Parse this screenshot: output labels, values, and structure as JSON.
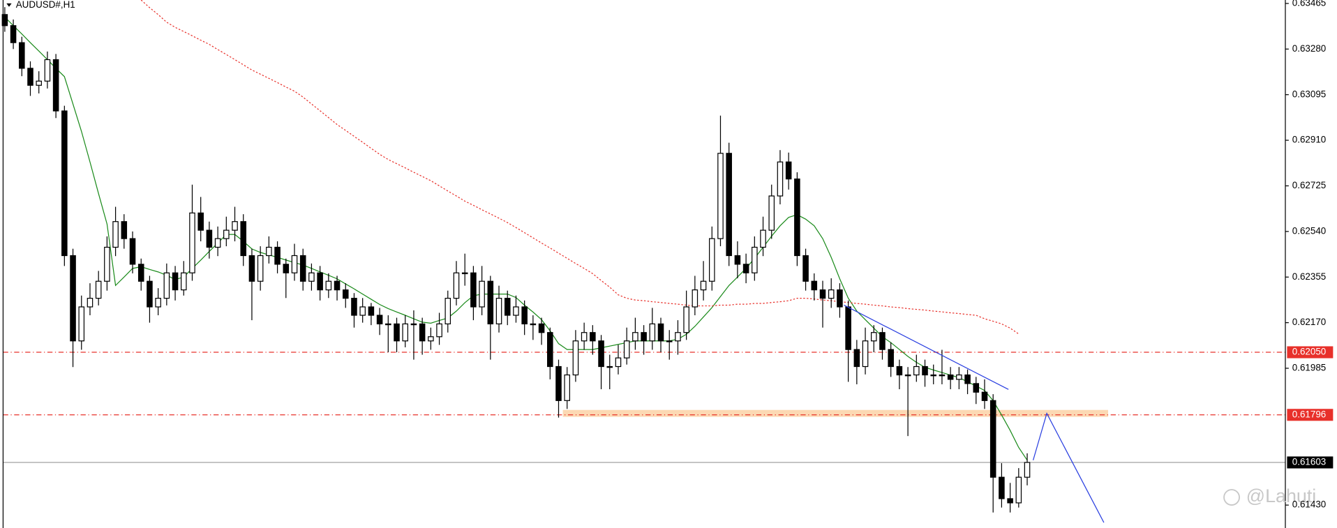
{
  "chart_data": {
    "type": "candlestick",
    "title": "AUDUSD#,H1",
    "watermark": "@Lahuti",
    "ylim": [
      0.61337,
      0.63479
    ],
    "xlim": [
      -0.5,
      150.3
    ],
    "yticks": [
      0.63465,
      {
        "value": 0.6328,
        "label": "0.63280"
      },
      0.63095,
      {
        "value": 0.6291,
        "label": "0.62910"
      },
      0.62725,
      {
        "value": 0.6254,
        "label": "0.62540"
      },
      0.62355,
      {
        "value": 0.6217,
        "label": "0.62170"
      },
      0.61985,
      {
        "value": 0.6143,
        "label": "0.61430"
      }
    ],
    "bull_color": "#ffffff",
    "bear_color": "#000000",
    "candles": [
      [
        0.6342,
        0.6345,
        0.6335,
        0.63375
      ],
      [
        0.63375,
        0.634,
        0.6328,
        0.63306
      ],
      [
        0.63306,
        0.6333,
        0.6317,
        0.63202
      ],
      [
        0.63202,
        0.6323,
        0.6309,
        0.63133
      ],
      [
        0.63133,
        0.6319,
        0.631,
        0.6315
      ],
      [
        0.6315,
        0.6327,
        0.6312,
        0.63237
      ],
      [
        0.63237,
        0.6326,
        0.63,
        0.63029
      ],
      [
        0.63029,
        0.6305,
        0.624,
        0.62442
      ],
      [
        0.62442,
        0.6247,
        0.6199,
        0.62096
      ],
      [
        0.62096,
        0.6228,
        0.6206,
        0.62234
      ],
      [
        0.62234,
        0.6233,
        0.622,
        0.62269
      ],
      [
        0.62269,
        0.6238,
        0.6224,
        0.62338
      ],
      [
        0.62338,
        0.6252,
        0.623,
        0.62476
      ],
      [
        0.62476,
        0.6264,
        0.6244,
        0.6258
      ],
      [
        0.6258,
        0.6261,
        0.6247,
        0.62511
      ],
      [
        0.62511,
        0.6254,
        0.6237,
        0.62407
      ],
      [
        0.62407,
        0.6243,
        0.623,
        0.62338
      ],
      [
        0.62338,
        0.6236,
        0.6217,
        0.62234
      ],
      [
        0.62234,
        0.6231,
        0.622,
        0.62269
      ],
      [
        0.62269,
        0.6241,
        0.6224,
        0.62372
      ],
      [
        0.62372,
        0.624,
        0.6226,
        0.62303
      ],
      [
        0.62303,
        0.6242,
        0.6228,
        0.62372
      ],
      [
        0.62372,
        0.6273,
        0.6234,
        0.62615
      ],
      [
        0.62615,
        0.6268,
        0.625,
        0.62545
      ],
      [
        0.62545,
        0.6258,
        0.6243,
        0.62476
      ],
      [
        0.62476,
        0.6256,
        0.6244,
        0.62511
      ],
      [
        0.62511,
        0.626,
        0.6248,
        0.62545
      ],
      [
        0.62545,
        0.6264,
        0.625,
        0.6258
      ],
      [
        0.6258,
        0.6261,
        0.624,
        0.62442
      ],
      [
        0.62442,
        0.6247,
        0.6218,
        0.62338
      ],
      [
        0.62338,
        0.6248,
        0.623,
        0.62442
      ],
      [
        0.62442,
        0.6252,
        0.6241,
        0.62476
      ],
      [
        0.62476,
        0.625,
        0.6237,
        0.62407
      ],
      [
        0.62407,
        0.6243,
        0.6227,
        0.62372
      ],
      [
        0.62372,
        0.6249,
        0.6234,
        0.62442
      ],
      [
        0.62442,
        0.6247,
        0.623,
        0.62338
      ],
      [
        0.62338,
        0.6241,
        0.623,
        0.62372
      ],
      [
        0.62372,
        0.624,
        0.6226,
        0.62303
      ],
      [
        0.62303,
        0.6237,
        0.6227,
        0.62338
      ],
      [
        0.62338,
        0.6236,
        0.6226,
        0.62303
      ],
      [
        0.62303,
        0.6233,
        0.6223,
        0.62269
      ],
      [
        0.62269,
        0.6229,
        0.6215,
        0.622
      ],
      [
        0.622,
        0.6227,
        0.6217,
        0.62234
      ],
      [
        0.62234,
        0.6225,
        0.6216,
        0.622
      ],
      [
        0.622,
        0.6223,
        0.6212,
        0.62165
      ],
      [
        0.62165,
        0.622,
        0.6205,
        0.62165
      ],
      [
        0.62165,
        0.6219,
        0.6205,
        0.62096
      ],
      [
        0.62096,
        0.622,
        0.6207,
        0.62165
      ],
      [
        0.62165,
        0.6222,
        0.6202,
        0.62165
      ],
      [
        0.62165,
        0.6219,
        0.6204,
        0.62096
      ],
      [
        0.62096,
        0.6215,
        0.6206,
        0.62113
      ],
      [
        0.62113,
        0.6221,
        0.6208,
        0.62165
      ],
      [
        0.62165,
        0.623,
        0.6213,
        0.62269
      ],
      [
        0.62269,
        0.6242,
        0.6224,
        0.62372
      ],
      [
        0.62372,
        0.6245,
        0.6232,
        0.62372
      ],
      [
        0.62372,
        0.624,
        0.6218,
        0.62234
      ],
      [
        0.62234,
        0.624,
        0.622,
        0.62338
      ],
      [
        0.62338,
        0.6236,
        0.6202,
        0.62165
      ],
      [
        0.62165,
        0.6232,
        0.6213,
        0.62269
      ],
      [
        0.62269,
        0.623,
        0.6216,
        0.622
      ],
      [
        0.622,
        0.6228,
        0.6217,
        0.62234
      ],
      [
        0.62234,
        0.6226,
        0.6212,
        0.62165
      ],
      [
        0.62165,
        0.622,
        0.621,
        0.62165
      ],
      [
        0.62165,
        0.6219,
        0.6208,
        0.6213
      ],
      [
        0.6213,
        0.6215,
        0.6194,
        0.61992
      ],
      [
        0.61992,
        0.6202,
        0.61785,
        0.61854
      ],
      [
        0.61854,
        0.6199,
        0.6182,
        0.61958
      ],
      [
        0.61958,
        0.6214,
        0.6193,
        0.62096
      ],
      [
        0.62096,
        0.6217,
        0.6206,
        0.6213
      ],
      [
        0.6213,
        0.6216,
        0.6204,
        0.62096
      ],
      [
        0.62096,
        0.6212,
        0.619,
        0.61992
      ],
      [
        0.61992,
        0.6204,
        0.619,
        0.61992
      ],
      [
        0.61992,
        0.6208,
        0.6196,
        0.62027
      ],
      [
        0.62027,
        0.6215,
        0.62,
        0.62096
      ],
      [
        0.62096,
        0.6219,
        0.6206,
        0.6213
      ],
      [
        0.6213,
        0.6216,
        0.6204,
        0.62096
      ],
      [
        0.62096,
        0.6223,
        0.6206,
        0.62165
      ],
      [
        0.62165,
        0.6219,
        0.6205,
        0.62096
      ],
      [
        0.62096,
        0.6214,
        0.6202,
        0.62096
      ],
      [
        0.62096,
        0.6218,
        0.6204,
        0.6213
      ],
      [
        0.6213,
        0.623,
        0.621,
        0.62234
      ],
      [
        0.62234,
        0.6236,
        0.622,
        0.62303
      ],
      [
        0.62303,
        0.6242,
        0.6226,
        0.62338
      ],
      [
        0.62338,
        0.6256,
        0.623,
        0.62511
      ],
      [
        0.62511,
        0.6301,
        0.6248,
        0.62857
      ],
      [
        0.62857,
        0.629,
        0.624,
        0.62442
      ],
      [
        0.62442,
        0.625,
        0.6235,
        0.62407
      ],
      [
        0.62407,
        0.6245,
        0.6233,
        0.62372
      ],
      [
        0.62372,
        0.6252,
        0.6234,
        0.62476
      ],
      [
        0.62476,
        0.626,
        0.6244,
        0.62545
      ],
      [
        0.62545,
        0.6273,
        0.6251,
        0.62684
      ],
      [
        0.62684,
        0.6287,
        0.6265,
        0.62822
      ],
      [
        0.62822,
        0.6286,
        0.6271,
        0.62753
      ],
      [
        0.62753,
        0.6278,
        0.624,
        0.62442
      ],
      [
        0.62442,
        0.6247,
        0.623,
        0.62338
      ],
      [
        0.62338,
        0.6237,
        0.6226,
        0.62303
      ],
      [
        0.62303,
        0.6234,
        0.6215,
        0.62269
      ],
      [
        0.62269,
        0.6235,
        0.6223,
        0.62303
      ],
      [
        0.62303,
        0.6233,
        0.6219,
        0.62234
      ],
      [
        0.62234,
        0.6226,
        0.6193,
        0.62061
      ],
      [
        0.62061,
        0.621,
        0.6192,
        0.61992
      ],
      [
        0.61992,
        0.6215,
        0.6196,
        0.62096
      ],
      [
        0.62096,
        0.6216,
        0.6205,
        0.6213
      ],
      [
        0.6213,
        0.6215,
        0.6202,
        0.62061
      ],
      [
        0.62061,
        0.6209,
        0.6195,
        0.61992
      ],
      [
        0.61992,
        0.6202,
        0.619,
        0.61958
      ],
      [
        0.61958,
        0.6199,
        0.6171,
        0.61958
      ],
      [
        0.61958,
        0.6204,
        0.6193,
        0.61992
      ],
      [
        0.61992,
        0.6202,
        0.6191,
        0.61958
      ],
      [
        0.61958,
        0.62,
        0.6192,
        0.61958
      ],
      [
        0.61958,
        0.6206,
        0.6192,
        0.61958
      ],
      [
        0.61958,
        0.6199,
        0.619,
        0.6194
      ],
      [
        0.6194,
        0.6199,
        0.619,
        0.61958
      ],
      [
        0.61958,
        0.6198,
        0.6188,
        0.61923
      ],
      [
        0.61923,
        0.6195,
        0.6184,
        0.61888
      ],
      [
        0.61888,
        0.6194,
        0.6182,
        0.61854
      ],
      [
        0.61854,
        0.6188,
        0.614,
        0.61543
      ],
      [
        0.61543,
        0.616,
        0.6142,
        0.61456
      ],
      [
        0.61456,
        0.6152,
        0.614,
        0.61439
      ],
      [
        0.61439,
        0.6158,
        0.6142,
        0.61543
      ],
      [
        0.61543,
        0.6164,
        0.6151,
        0.61603
      ]
    ],
    "moving_averages": [
      {
        "color": "#1a8a1a",
        "style": "solid",
        "values": [
          0.6341,
          0.63375,
          0.63341,
          0.63306,
          0.63272,
          0.63237,
          0.63202,
          0.63168,
          0.63057,
          0.62946,
          0.62822,
          0.62694,
          0.6257,
          0.62321,
          0.62355,
          0.6239,
          0.62397,
          0.62386,
          0.62376,
          0.62362,
          0.62345,
          0.62355,
          0.6239,
          0.62424,
          0.62459,
          0.62493,
          0.62528,
          0.62528,
          0.625,
          0.62469,
          0.62455,
          0.62445,
          0.62435,
          0.62424,
          0.62414,
          0.62404,
          0.6239,
          0.62376,
          0.62362,
          0.62348,
          0.62327,
          0.62307,
          0.62286,
          0.62265,
          0.62244,
          0.62227,
          0.62213,
          0.622,
          0.62186,
          0.62172,
          0.62168,
          0.62179,
          0.62189,
          0.62217,
          0.62251,
          0.62279,
          0.62286,
          0.62286,
          0.62286,
          0.62286,
          0.62272,
          0.62241,
          0.62213,
          0.62182,
          0.62137,
          0.62085,
          0.62061,
          0.62061,
          0.62061,
          0.62061,
          0.62068,
          0.62075,
          0.62082,
          0.62089,
          0.62096,
          0.62096,
          0.62096,
          0.62096,
          0.62096,
          0.62103,
          0.62123,
          0.62155,
          0.62193,
          0.62231,
          0.62276,
          0.62321,
          0.62355,
          0.6239,
          0.62431,
          0.62476,
          0.62521,
          0.62563,
          0.62597,
          0.62608,
          0.6259,
          0.62563,
          0.62511,
          0.62435,
          0.62348,
          0.62269,
          0.62217,
          0.62182,
          0.62148,
          0.62113,
          0.62089,
          0.62061,
          0.62033,
          0.62009,
          0.61989,
          0.61978,
          0.61968,
          0.61957,
          0.61947,
          0.6193,
          0.61913,
          0.61895,
          0.61854,
          0.61795,
          0.61733,
          0.61664,
          0.61612
        ]
      },
      {
        "color": "#e8302a",
        "style": "dotted",
        "values": [
          null,
          null,
          null,
          null,
          null,
          null,
          null,
          null,
          null,
          null,
          null,
          null,
          null,
          null,
          null,
          null,
          0.63479,
          0.63448,
          0.6342,
          0.63389,
          0.63368,
          0.63351,
          0.63334,
          0.63316,
          0.63299,
          0.63278,
          0.63258,
          0.63237,
          0.63216,
          0.63195,
          0.63178,
          0.63161,
          0.63144,
          0.63126,
          0.63109,
          0.63085,
          0.63057,
          0.6303,
          0.63002,
          0.62974,
          0.6295,
          0.62926,
          0.62902,
          0.62877,
          0.62853,
          0.62832,
          0.62815,
          0.62798,
          0.6278,
          0.62763,
          0.62746,
          0.62725,
          0.62704,
          0.62684,
          0.62663,
          0.62646,
          0.62628,
          0.62611,
          0.62594,
          0.62576,
          0.62556,
          0.62535,
          0.62514,
          0.62493,
          0.62473,
          0.62452,
          0.62431,
          0.6241,
          0.6239,
          0.62369,
          0.62341,
          0.62314,
          0.62283,
          0.62269,
          0.62262,
          0.62259,
          0.62255,
          0.62252,
          0.62248,
          0.62245,
          0.62241,
          0.62238,
          0.62238,
          0.62238,
          0.62241,
          0.62241,
          0.62245,
          0.62245,
          0.62248,
          0.62248,
          0.62252,
          0.62255,
          0.62259,
          0.62269,
          0.62269,
          0.62266,
          0.62262,
          0.62259,
          0.62255,
          0.62252,
          0.62248,
          0.62245,
          0.62241,
          0.62238,
          0.62234,
          0.62231,
          0.62227,
          0.62224,
          0.62221,
          0.62217,
          0.62214,
          0.6221,
          0.62207,
          0.62203,
          0.622,
          0.62186,
          0.62176,
          0.62165,
          0.62148,
          0.62124,
          null
        ]
      }
    ],
    "levels": [
      {
        "value": 0.6205,
        "label": "0.62050",
        "color": "#e8302a"
      },
      {
        "value": 0.61796,
        "label": "0.61796",
        "color": "#e8302a"
      }
    ],
    "current_price": {
      "value": 0.61603,
      "label": "0.61603",
      "color": "#000000"
    },
    "zone": {
      "x": [
        65.5,
        129.5
      ],
      "y": [
        0.61788,
        0.61816
      ],
      "color": "#fcd9b3"
    },
    "trendlines": [
      {
        "color": "#2a3fe0",
        "points": [
          [
            98.5,
            0.62241
          ],
          [
            117.8,
            0.61899
          ]
        ]
      },
      {
        "color": "#2a3fe0",
        "points": [
          [
            120.7,
            0.61612
          ],
          [
            122.3,
            0.61802
          ],
          [
            129,
            0.61359
          ]
        ]
      }
    ]
  }
}
